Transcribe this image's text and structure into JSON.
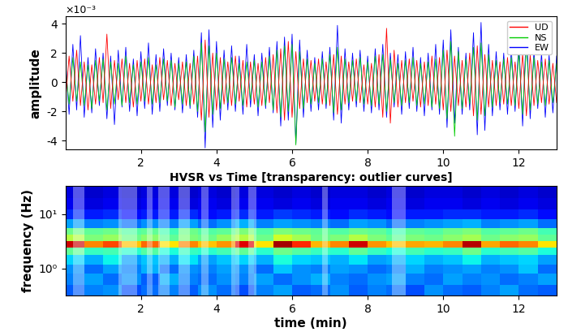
{
  "chart_data": [
    {
      "type": "line",
      "y_label": "amplitude",
      "annotations": [
        "×10⁻³"
      ],
      "legend": "upper right",
      "grid": false,
      "xlim": [
        0,
        13
      ],
      "ylim": [
        -4.6,
        4.5
      ],
      "xticks": [
        2,
        4,
        6,
        8,
        10,
        12
      ],
      "yticks": [
        -4,
        -2,
        0,
        2,
        4
      ],
      "x": [
        0.0,
        0.1,
        0.2,
        0.3,
        0.4,
        0.5,
        0.6,
        0.7,
        0.8,
        0.9,
        1.0,
        1.1,
        1.2,
        1.3,
        1.4,
        1.5,
        1.6,
        1.7,
        1.8,
        1.9,
        2.0,
        2.1,
        2.2,
        2.3,
        2.4,
        2.5,
        2.6,
        2.7,
        2.8,
        2.9,
        3.0,
        3.1,
        3.2,
        3.3,
        3.4,
        3.5,
        3.6,
        3.7,
        3.8,
        3.9,
        4.0,
        4.1,
        4.2,
        4.3,
        4.4,
        4.5,
        4.6,
        4.7,
        4.8,
        4.9,
        5.0,
        5.1,
        5.2,
        5.3,
        5.4,
        5.5,
        5.6,
        5.7,
        5.8,
        5.9,
        6.0,
        6.1,
        6.2,
        6.3,
        6.4,
        6.5,
        6.6,
        6.7,
        6.8,
        6.9,
        7.0,
        7.1,
        7.2,
        7.3,
        7.4,
        7.5,
        7.6,
        7.7,
        7.8,
        7.9,
        8.0,
        8.1,
        8.2,
        8.3,
        8.4,
        8.5,
        8.6,
        8.7,
        8.8,
        8.9,
        9.0,
        9.1,
        9.2,
        9.3,
        9.4,
        9.5,
        9.6,
        9.7,
        9.8,
        9.9,
        10.0,
        10.1,
        10.2,
        10.3,
        10.4,
        10.5,
        10.6,
        10.7,
        10.8,
        10.9,
        11.0,
        11.1,
        11.2,
        11.3,
        11.4,
        11.5,
        11.6,
        11.7,
        11.8,
        11.9,
        12.0,
        12.1,
        12.2,
        12.3,
        12.4,
        12.5,
        12.6,
        12.7,
        12.8,
        12.9,
        13.0
      ],
      "series": [
        {
          "name": "UD",
          "color": "#ff0000",
          "values": [
            -1.5,
            1.8,
            -1.3,
            2.2,
            -1.6,
            1.4,
            -1.9,
            1.2,
            -1.5,
            1.7,
            -1.4,
            3.3,
            -1.8,
            1.5,
            -1.2,
            1.6,
            -1.4,
            1.3,
            -1.7,
            1.5,
            -1.3,
            1.6,
            -1.5,
            1.2,
            -1.4,
            1.7,
            -1.2,
            1.5,
            -1.6,
            1.3,
            -1.2,
            1.4,
            -1.6,
            1.3,
            -1.5,
            1.8,
            -2.6,
            2.9,
            -2.4,
            2.0,
            -1.9,
            1.7,
            -1.5,
            1.4,
            -1.6,
            1.8,
            -1.3,
            1.5,
            -1.7,
            1.4,
            -1.5,
            1.3,
            -1.6,
            1.7,
            -1.4,
            1.9,
            -2.1,
            2.3,
            -2.6,
            2.8,
            -2.4,
            2.1,
            -1.8,
            1.6,
            -1.4,
            1.5,
            -1.3,
            1.6,
            -1.5,
            1.4,
            -1.6,
            1.9,
            -2.2,
            1.8,
            -1.5,
            1.4,
            -1.3,
            1.6,
            -1.4,
            1.2,
            -1.5,
            1.3,
            -1.7,
            1.9,
            -2.4,
            3.7,
            -2.8,
            2.2,
            -1.7,
            1.5,
            -1.4,
            1.6,
            -1.3,
            1.5,
            -1.7,
            1.4,
            -1.6,
            1.8,
            -1.5,
            1.7,
            -1.9,
            2.2,
            -2.0,
            1.8,
            -1.6,
            1.5,
            -1.7,
            2.0,
            -2.3,
            2.5,
            -2.2,
            1.9,
            -1.7,
            1.5,
            -1.6,
            1.4,
            -1.5,
            1.7,
            -1.6,
            1.4,
            -1.8,
            2.0,
            -2.3,
            1.9,
            -1.6,
            1.5,
            -1.4,
            1.6,
            -1.5,
            1.3,
            -1.4
          ]
        },
        {
          "name": "NS",
          "color": "#00cc00",
          "values": [
            1.2,
            -1.5,
            1.7,
            -1.3,
            1.4,
            -1.6,
            1.2,
            -1.8,
            1.5,
            -1.3,
            1.6,
            -1.9,
            1.4,
            -1.5,
            1.3,
            -1.6,
            1.8,
            -1.4,
            1.2,
            -1.5,
            1.4,
            -1.3,
            1.7,
            -1.5,
            1.2,
            -1.4,
            1.6,
            -1.3,
            1.5,
            -1.7,
            1.3,
            -1.5,
            1.4,
            -1.6,
            1.8,
            -2.0,
            2.7,
            -3.4,
            2.5,
            -2.2,
            2.0,
            -1.8,
            1.6,
            -1.4,
            1.7,
            -1.5,
            1.3,
            -1.6,
            1.4,
            -1.2,
            1.5,
            -1.7,
            1.4,
            -1.6,
            1.8,
            -1.9,
            2.2,
            -2.4,
            2.5,
            -2.0,
            2.6,
            -4.3,
            2.1,
            -1.8,
            1.6,
            -1.5,
            1.3,
            -1.4,
            1.6,
            -1.5,
            1.9,
            -2.1,
            2.4,
            -1.9,
            1.6,
            -1.4,
            1.5,
            -1.3,
            1.7,
            -1.5,
            1.4,
            -1.6,
            1.8,
            -1.5,
            1.9,
            -2.0,
            1.6,
            -1.4,
            1.3,
            -1.6,
            1.5,
            -1.4,
            1.7,
            -1.6,
            1.3,
            -1.5,
            1.4,
            -1.7,
            1.6,
            -1.8,
            2.2,
            -2.5,
            2.8,
            -3.7,
            2.1,
            -1.8,
            1.6,
            -1.5,
            2.4,
            -2.6,
            2.7,
            -2.3,
            1.9,
            -1.7,
            1.5,
            -1.4,
            1.6,
            -1.5,
            1.7,
            -1.6,
            2.0,
            -2.2,
            2.5,
            -1.9,
            1.7,
            -1.5,
            1.4,
            -1.6,
            1.5,
            -1.4,
            1.3
          ]
        },
        {
          "name": "EW",
          "color": "#0000ff",
          "values": [
            1.8,
            -2.2,
            2.6,
            -1.9,
            3.2,
            -2.4,
            1.7,
            -2.1,
            2.3,
            -1.6,
            2.0,
            -2.5,
            1.8,
            -2.9,
            2.2,
            -1.7,
            2.4,
            -2.0,
            1.6,
            -2.3,
            2.1,
            -1.8,
            2.7,
            -2.2,
            1.9,
            -2.0,
            2.3,
            -1.6,
            2.0,
            -1.9,
            1.7,
            -2.1,
            1.9,
            -1.8,
            2.2,
            -2.4,
            3.4,
            -4.5,
            3.6,
            -3.1,
            2.8,
            -2.6,
            2.2,
            -1.9,
            2.5,
            -2.0,
            1.8,
            -2.2,
            2.6,
            -1.7,
            1.9,
            -2.3,
            2.0,
            -1.8,
            2.4,
            -2.1,
            2.8,
            -3.0,
            3.1,
            -2.6,
            3.3,
            -4.2,
            2.9,
            -2.4,
            2.2,
            -2.0,
            1.7,
            -1.9,
            2.1,
            -1.8,
            2.4,
            -2.6,
            3.9,
            -2.8,
            2.3,
            -1.9,
            2.0,
            -1.7,
            2.2,
            -2.0,
            1.8,
            -2.1,
            2.3,
            -1.9,
            2.6,
            -2.4,
            2.0,
            -1.7,
            1.9,
            -2.2,
            2.1,
            -1.8,
            2.4,
            -2.0,
            1.7,
            -2.3,
            2.0,
            -1.9,
            2.6,
            -2.2,
            2.9,
            -3.1,
            3.6,
            -2.8,
            2.4,
            -2.2,
            2.0,
            -1.9,
            3.4,
            -3.6,
            4.1,
            -3.3,
            2.6,
            -2.3,
            2.1,
            -1.9,
            2.0,
            -2.2,
            2.3,
            -2.0,
            2.8,
            -3.0,
            3.7,
            -2.5,
            2.2,
            -1.8,
            2.0,
            -2.4,
            1.9,
            -2.1,
            1.8
          ]
        }
      ]
    },
    {
      "type": "heatmap",
      "title": "HVSR vs Time [transparency: outlier curves]",
      "x_label": "time (min)",
      "y_label": "frequency (Hz)",
      "log": "y",
      "grid": false,
      "xlim": [
        0,
        13
      ],
      "ylim": [
        0.32,
        33
      ],
      "xticks": [
        2,
        4,
        6,
        8,
        10,
        12
      ],
      "yticks": [
        {
          "value": 1,
          "label": "10⁰"
        },
        {
          "value": 10,
          "label": "10¹"
        }
      ],
      "x_edges": [
        0,
        0.5,
        1,
        1.5,
        2,
        2.5,
        3,
        3.5,
        4,
        4.5,
        5,
        5.5,
        6,
        6.5,
        7,
        7.5,
        8,
        8.5,
        9,
        9.5,
        10,
        10.5,
        11,
        11.5,
        12,
        12.5,
        13
      ],
      "y_edges": [
        0.32,
        0.5,
        0.8,
        1.2,
        1.8,
        2.4,
        3.2,
        4.2,
        5.6,
        8,
        12,
        20,
        33
      ],
      "color_range": [
        0,
        6
      ],
      "cells": [
        [
          1.3,
          1.5,
          1.6,
          1.2,
          1.4,
          1.5,
          1.3,
          1.6,
          1.4,
          1.2,
          1.5,
          1.7,
          1.3,
          1.4,
          1.6,
          1.3,
          1.5,
          1.4,
          1.2,
          1.6,
          1.4,
          1.3,
          1.5,
          1.7,
          1.4,
          1.3
        ],
        [
          1.5,
          1.7,
          1.4,
          1.6,
          1.3,
          1.8,
          1.5,
          1.4,
          1.6,
          1.5,
          1.7,
          1.4,
          1.6,
          1.8,
          1.5,
          1.4,
          1.6,
          1.7,
          1.5,
          1.4,
          1.7,
          1.5,
          1.6,
          1.4,
          1.5,
          1.7
        ],
        [
          1.6,
          1.4,
          1.7,
          1.5,
          1.8,
          1.4,
          1.6,
          1.5,
          1.7,
          1.6,
          1.4,
          1.9,
          1.6,
          1.5,
          1.7,
          1.6,
          1.4,
          1.5,
          1.8,
          1.5,
          1.6,
          1.7,
          1.5,
          1.6,
          1.9,
          1.4
        ],
        [
          2.0,
          1.8,
          2.2,
          1.7,
          1.9,
          1.8,
          2.1,
          1.7,
          1.9,
          2.0,
          1.8,
          2.3,
          2.0,
          1.9,
          1.8,
          2.1,
          1.7,
          1.8,
          2.0,
          1.8,
          1.9,
          2.2,
          1.8,
          1.9,
          2.0,
          1.7
        ],
        [
          2.8,
          2.5,
          2.6,
          2.4,
          2.7,
          2.3,
          2.5,
          2.4,
          2.6,
          2.8,
          2.4,
          2.9,
          2.7,
          2.5,
          2.4,
          2.8,
          2.5,
          2.3,
          2.6,
          2.4,
          2.5,
          2.9,
          2.4,
          2.6,
          2.7,
          2.3
        ],
        [
          5.6,
          4.6,
          5.0,
          4.2,
          4.8,
          4.0,
          4.6,
          4.2,
          4.5,
          5.5,
          4.0,
          5.8,
          5.2,
          4.3,
          4.6,
          5.6,
          4.5,
          4.2,
          4.4,
          4.3,
          4.6,
          5.7,
          4.4,
          4.8,
          4.6,
          4.0
        ],
        [
          3.4,
          3.0,
          3.2,
          2.9,
          3.1,
          2.8,
          3.0,
          2.9,
          3.2,
          3.4,
          2.9,
          3.6,
          3.3,
          2.9,
          3.0,
          3.4,
          3.0,
          2.8,
          3.0,
          2.9,
          3.1,
          3.3,
          2.9,
          3.1,
          3.2,
          2.8
        ],
        [
          2.9,
          2.8,
          2.9,
          2.7,
          2.8,
          2.6,
          2.9,
          2.7,
          2.8,
          3.0,
          2.7,
          3.0,
          2.9,
          2.8,
          2.7,
          2.9,
          2.8,
          2.6,
          2.8,
          2.7,
          2.9,
          3.0,
          2.7,
          2.8,
          2.9,
          2.6
        ],
        [
          1.7,
          1.5,
          1.6,
          1.4,
          1.6,
          1.5,
          1.7,
          1.4,
          1.6,
          1.8,
          1.5,
          1.7,
          1.6,
          1.5,
          1.4,
          1.7,
          1.6,
          1.4,
          1.5,
          1.6,
          1.7,
          1.8,
          1.5,
          1.6,
          1.7,
          1.4
        ],
        [
          1.0,
          0.9,
          1.0,
          0.8,
          0.9,
          0.9,
          1.0,
          0.8,
          0.9,
          1.0,
          0.9,
          1.1,
          1.0,
          0.9,
          0.8,
          1.0,
          0.9,
          0.8,
          0.9,
          0.9,
          1.0,
          1.0,
          0.9,
          0.9,
          1.0,
          0.8
        ],
        [
          0.6,
          0.5,
          0.6,
          0.5,
          0.6,
          0.6,
          0.5,
          0.6,
          0.5,
          0.6,
          0.6,
          0.5,
          0.6,
          0.5,
          0.6,
          0.6,
          0.5,
          0.6,
          0.5,
          0.6,
          0.6,
          0.5,
          0.6,
          0.5,
          0.6,
          0.5
        ],
        [
          0.5,
          0.4,
          0.5,
          0.4,
          0.5,
          0.5,
          0.4,
          0.5,
          0.4,
          0.5,
          0.5,
          0.4,
          0.5,
          0.4,
          0.5,
          0.5,
          0.4,
          0.5,
          0.4,
          0.5,
          0.5,
          0.4,
          0.5,
          0.4,
          0.5,
          0.4
        ]
      ],
      "outliers": [
        [
          0.2,
          0.5
        ],
        [
          1.4,
          1.9
        ],
        [
          2.15,
          2.3
        ],
        [
          2.45,
          2.75
        ],
        [
          3.0,
          3.3
        ],
        [
          3.6,
          3.8
        ],
        [
          4.4,
          4.6
        ],
        [
          4.85,
          5.05
        ],
        [
          6.8,
          6.95
        ],
        [
          8.65,
          9.0
        ]
      ]
    }
  ]
}
